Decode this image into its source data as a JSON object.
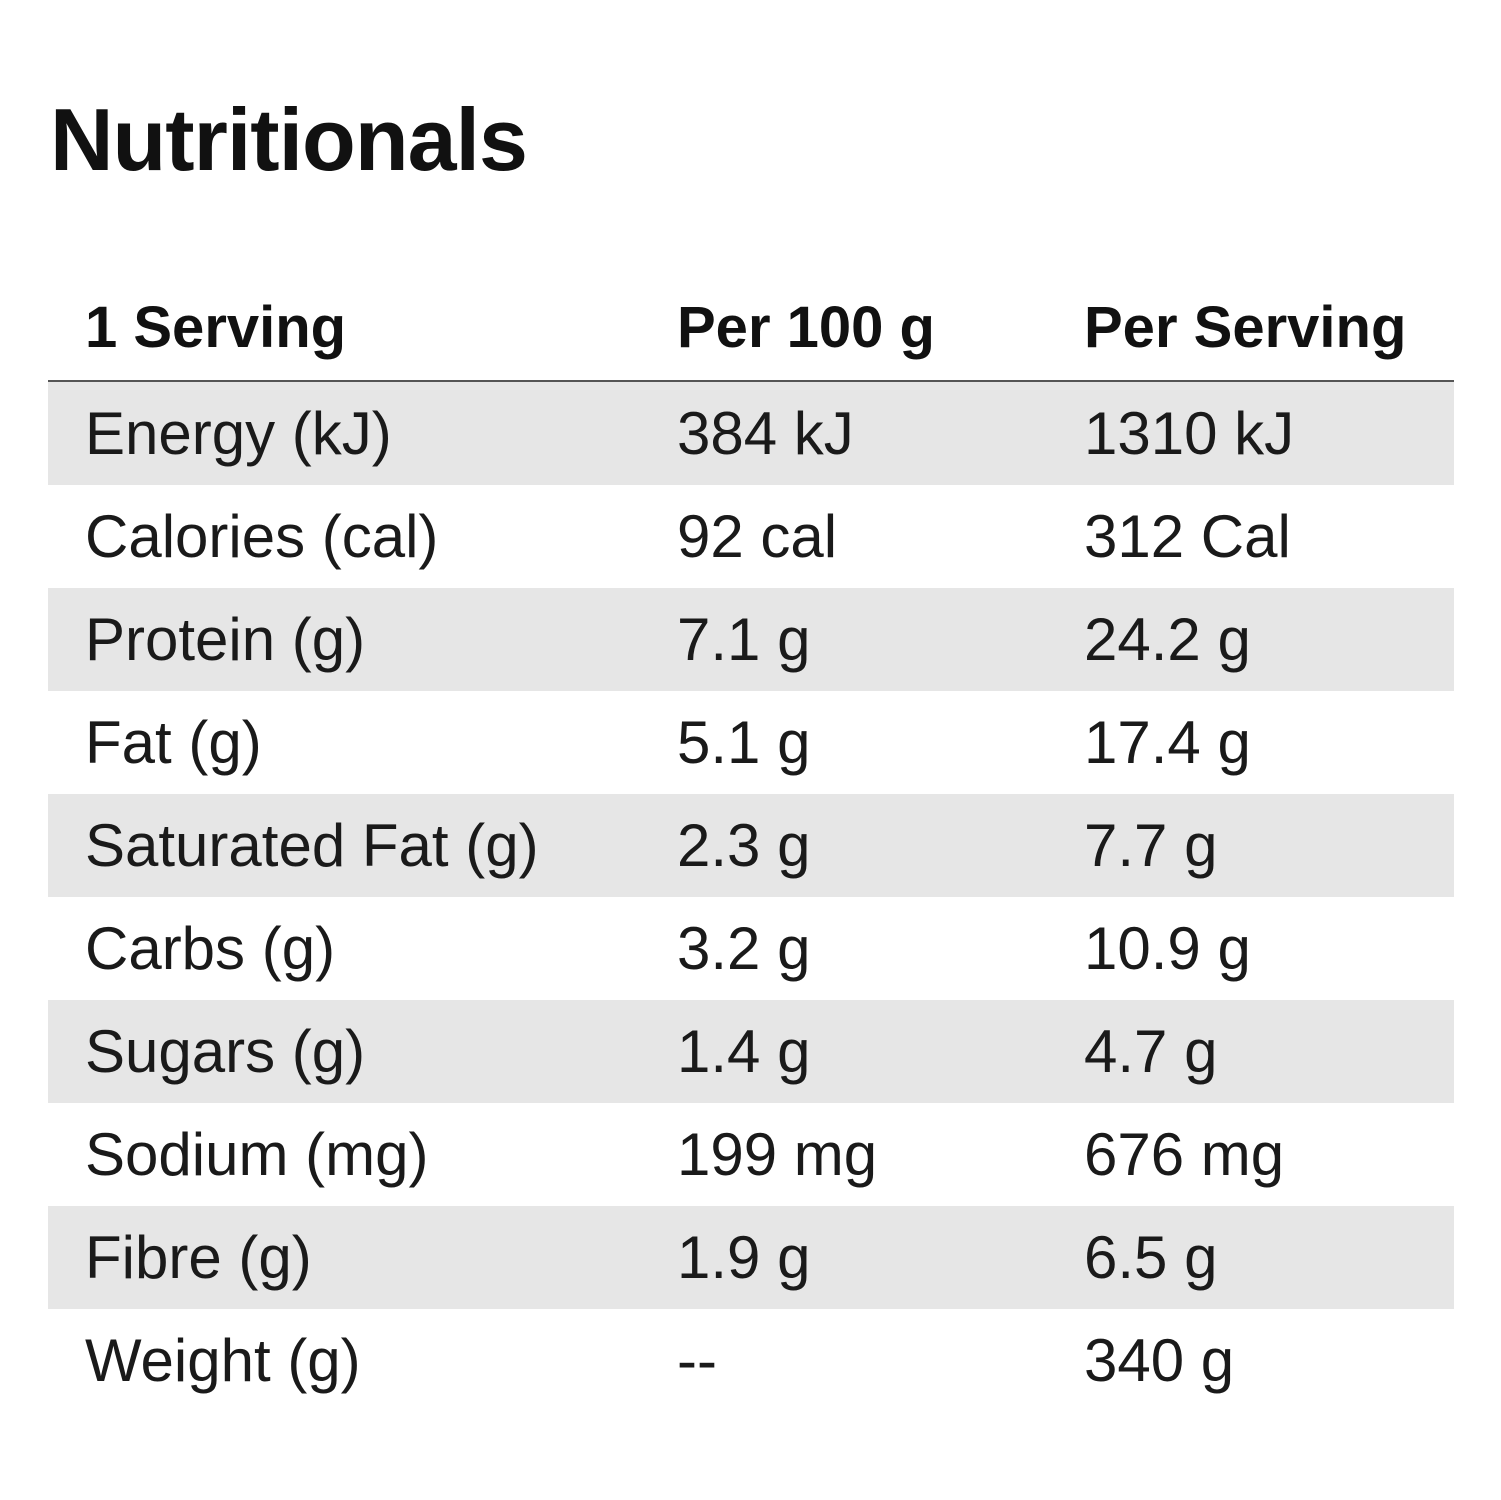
{
  "title": "Nutritionals",
  "table": {
    "headers": [
      "1 Serving",
      "Per 100 g",
      "Per Serving"
    ],
    "rows": [
      [
        "Energy (kJ)",
        "384 kJ",
        "1310 kJ"
      ],
      [
        "Calories (cal)",
        "92 cal",
        "312 Cal"
      ],
      [
        "Protein (g)",
        "7.1 g",
        "24.2 g"
      ],
      [
        "Fat (g)",
        "5.1 g",
        "17.4 g"
      ],
      [
        "Saturated Fat (g)",
        "2.3 g",
        "7.7 g"
      ],
      [
        "Carbs (g)",
        "3.2 g",
        "10.9 g"
      ],
      [
        "Sugars (g)",
        "1.4 g",
        "4.7 g"
      ],
      [
        "Sodium (mg)",
        "199 mg",
        "676 mg"
      ],
      [
        "Fibre (g)",
        "1.9 g",
        "6.5 g"
      ],
      [
        "Weight (g)",
        "--",
        "340 g"
      ]
    ]
  },
  "colors": {
    "shaded_row": "#e6e6e6",
    "text": "#111111",
    "header_rule": "#555555"
  }
}
